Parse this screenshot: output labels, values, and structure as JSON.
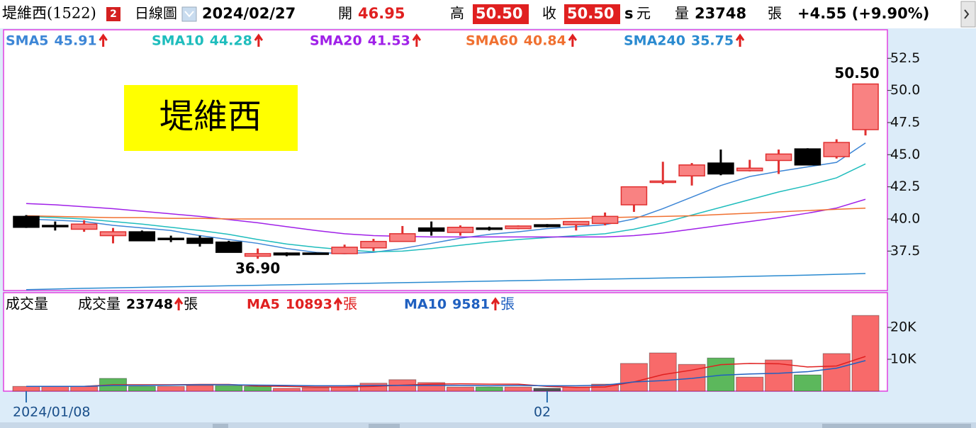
{
  "header": {
    "stock": "堤維西(1522)",
    "badge": "2",
    "period": "日線圖",
    "date": "2024/02/27",
    "open_label": "開",
    "open": "46.95",
    "high_label": "高",
    "high": "50.50",
    "close_label": "收",
    "close": "50.50",
    "unit_s": "s",
    "currency": "元",
    "volume_label": "量",
    "volume": "23748",
    "volume_unit": "張",
    "change": "+4.55 (+9.90%)"
  },
  "chart_data": [
    {
      "type": "candlestick",
      "watermark": "堤維西",
      "high_label": "50.50",
      "low_label": "36.90",
      "up_color": "#e03030",
      "up_fill": "#f98282",
      "down_color": "#000000",
      "open": [
        40.2,
        39.5,
        39.2,
        38.7,
        39.0,
        38.5,
        38.5,
        38.2,
        37.1,
        37.35,
        37.35,
        37.3,
        37.75,
        38.25,
        39.3,
        38.95,
        39.3,
        39.25,
        39.55,
        39.55,
        39.65,
        41.1,
        42.9,
        43.35,
        44.35,
        43.75,
        44.55,
        45.45,
        44.85,
        46.95
      ],
      "high": [
        40.3,
        39.8,
        39.9,
        39.3,
        39.1,
        38.7,
        38.7,
        38.3,
        37.7,
        37.4,
        37.4,
        38.0,
        38.45,
        39.45,
        39.8,
        39.5,
        39.4,
        39.5,
        39.6,
        39.8,
        40.5,
        42.5,
        44.45,
        44.35,
        45.4,
        44.6,
        45.4,
        45.5,
        46.2,
        50.5
      ],
      "low": [
        39.3,
        39.1,
        39.0,
        38.1,
        38.3,
        38.2,
        37.85,
        37.4,
        36.9,
        37.1,
        37.25,
        37.3,
        37.5,
        38.25,
        38.7,
        38.7,
        39.1,
        39.2,
        39.35,
        39.1,
        39.5,
        40.55,
        42.7,
        42.6,
        43.4,
        43.7,
        43.5,
        44.2,
        44.7,
        46.5
      ],
      "close": [
        39.35,
        39.4,
        39.6,
        39.0,
        38.3,
        38.45,
        38.1,
        37.4,
        37.3,
        37.2,
        37.3,
        37.8,
        38.25,
        38.85,
        39.05,
        39.35,
        39.2,
        39.45,
        39.4,
        39.8,
        40.2,
        42.5,
        42.95,
        44.2,
        43.5,
        43.95,
        45.05,
        44.2,
        45.95,
        50.5
      ],
      "series": [
        {
          "name": "SMA5",
          "color": "#3d86d6",
          "values": [
            40.0,
            39.9,
            39.8,
            39.5,
            39.3,
            39.1,
            38.7,
            38.4,
            38.1,
            37.7,
            37.4,
            37.3,
            37.4,
            37.7,
            38.1,
            38.5,
            38.8,
            39.0,
            39.25,
            39.4,
            39.55,
            40.0,
            40.8,
            41.7,
            42.6,
            43.3,
            43.7,
            44.05,
            44.4,
            45.91
          ]
        },
        {
          "name": "SMA10",
          "color": "#1fbdbd",
          "values": [
            40.2,
            40.1,
            40.0,
            39.8,
            39.6,
            39.35,
            39.1,
            38.8,
            38.4,
            38.05,
            37.8,
            37.6,
            37.45,
            37.5,
            37.7,
            37.95,
            38.2,
            38.4,
            38.55,
            38.7,
            38.85,
            39.2,
            39.7,
            40.3,
            40.9,
            41.5,
            42.1,
            42.6,
            43.2,
            44.28
          ]
        },
        {
          "name": "SMA20",
          "color": "#a020e8",
          "values": [
            41.2,
            41.1,
            40.95,
            40.8,
            40.6,
            40.4,
            40.2,
            39.95,
            39.7,
            39.4,
            39.1,
            38.85,
            38.7,
            38.65,
            38.6,
            38.6,
            38.6,
            38.6,
            38.6,
            38.6,
            38.6,
            38.7,
            38.9,
            39.2,
            39.5,
            39.8,
            40.1,
            40.45,
            40.85,
            41.53
          ]
        },
        {
          "name": "SMA60",
          "color": "#f07030",
          "values": [
            40.25,
            40.2,
            40.15,
            40.1,
            40.1,
            40.05,
            40.05,
            40.0,
            40.0,
            40.0,
            40.0,
            40.0,
            40.0,
            40.0,
            40.0,
            40.0,
            40.0,
            40.0,
            40.0,
            40.05,
            40.1,
            40.15,
            40.2,
            40.25,
            40.35,
            40.45,
            40.55,
            40.65,
            40.75,
            40.84
          ]
        },
        {
          "name": "SMA240",
          "color": "#2a8ad0",
          "values": [
            34.5,
            34.55,
            34.6,
            34.64,
            34.68,
            34.72,
            34.76,
            34.8,
            34.84,
            34.88,
            34.92,
            34.96,
            35.0,
            35.04,
            35.08,
            35.12,
            35.16,
            35.2,
            35.24,
            35.28,
            35.32,
            35.36,
            35.4,
            35.44,
            35.48,
            35.53,
            35.58,
            35.63,
            35.69,
            35.75
          ]
        }
      ],
      "ylim": [
        34.43,
        54.72
      ],
      "yticks": [
        37.5,
        {
          "value": 40,
          "label": "40.0"
        },
        42.5,
        {
          "value": 45,
          "label": "45.0"
        },
        47.5,
        {
          "value": 50,
          "label": "50.0"
        },
        52.5
      ]
    },
    {
      "type": "bar",
      "panel_label": "成交量",
      "unit": "張",
      "categories": [
        "2024/01/08",
        null,
        null,
        null,
        null,
        null,
        null,
        null,
        null,
        null,
        null,
        null,
        null,
        null,
        null,
        null,
        null,
        null,
        "02",
        null,
        null,
        null,
        null,
        null,
        null,
        null,
        null,
        null,
        null,
        null
      ],
      "series": [
        {
          "name": "成交量",
          "values": [
            1500,
            1500,
            1500,
            4000,
            1500,
            1500,
            1800,
            1700,
            1500,
            900,
            1100,
            1300,
            2500,
            3600,
            2700,
            1300,
            1300,
            1300,
            900,
            1300,
            2200,
            8700,
            12000,
            8400,
            10400,
            4400,
            9800,
            5100,
            11800,
            23748
          ],
          "colors": [
            "#f86a6a",
            "#f86a6a",
            "#f86a6a",
            "#5cb85c",
            "#5cb85c",
            "#f86a6a",
            "#f86a6a",
            "#5cb85c",
            "#5cb85c",
            "#f86a6a",
            "#f86a6a",
            "#f86a6a",
            "#f86a6a",
            "#f86a6a",
            "#f86a6a",
            "#f86a6a",
            "#5cb85c",
            "#f86a6a",
            "#555555",
            "#f86a6a",
            "#f86a6a",
            "#f86a6a",
            "#f86a6a",
            "#f86a6a",
            "#5cb85c",
            "#f86a6a",
            "#f86a6a",
            "#5cb85c",
            "#f86a6a",
            "#f86a6a"
          ]
        },
        {
          "name": "MA5",
          "color": "#e02020",
          "values": [
            1500,
            1500,
            1500,
            2000,
            2000,
            2000,
            2100,
            2100,
            1600,
            1500,
            1300,
            1300,
            1500,
            1900,
            2200,
            2300,
            2200,
            2200,
            1500,
            1200,
            1300,
            2900,
            5200,
            6600,
            8300,
            8700,
            8600,
            7600,
            7900,
            10893
          ]
        },
        {
          "name": "MA10",
          "color": "#2060c0",
          "values": [
            1500,
            1500,
            1500,
            1800,
            1800,
            1900,
            2000,
            2000,
            1900,
            1800,
            1700,
            1700,
            1800,
            1800,
            1800,
            1800,
            1700,
            1800,
            1700,
            1700,
            1900,
            2900,
            3300,
            4000,
            5000,
            5400,
            5600,
            6100,
            7200,
            9581
          ]
        }
      ],
      "ylim": [
        0,
        30900
      ],
      "yticks": [
        {
          "value": 10000,
          "label": "10K"
        },
        {
          "value": 20000,
          "label": "20K"
        }
      ]
    }
  ]
}
